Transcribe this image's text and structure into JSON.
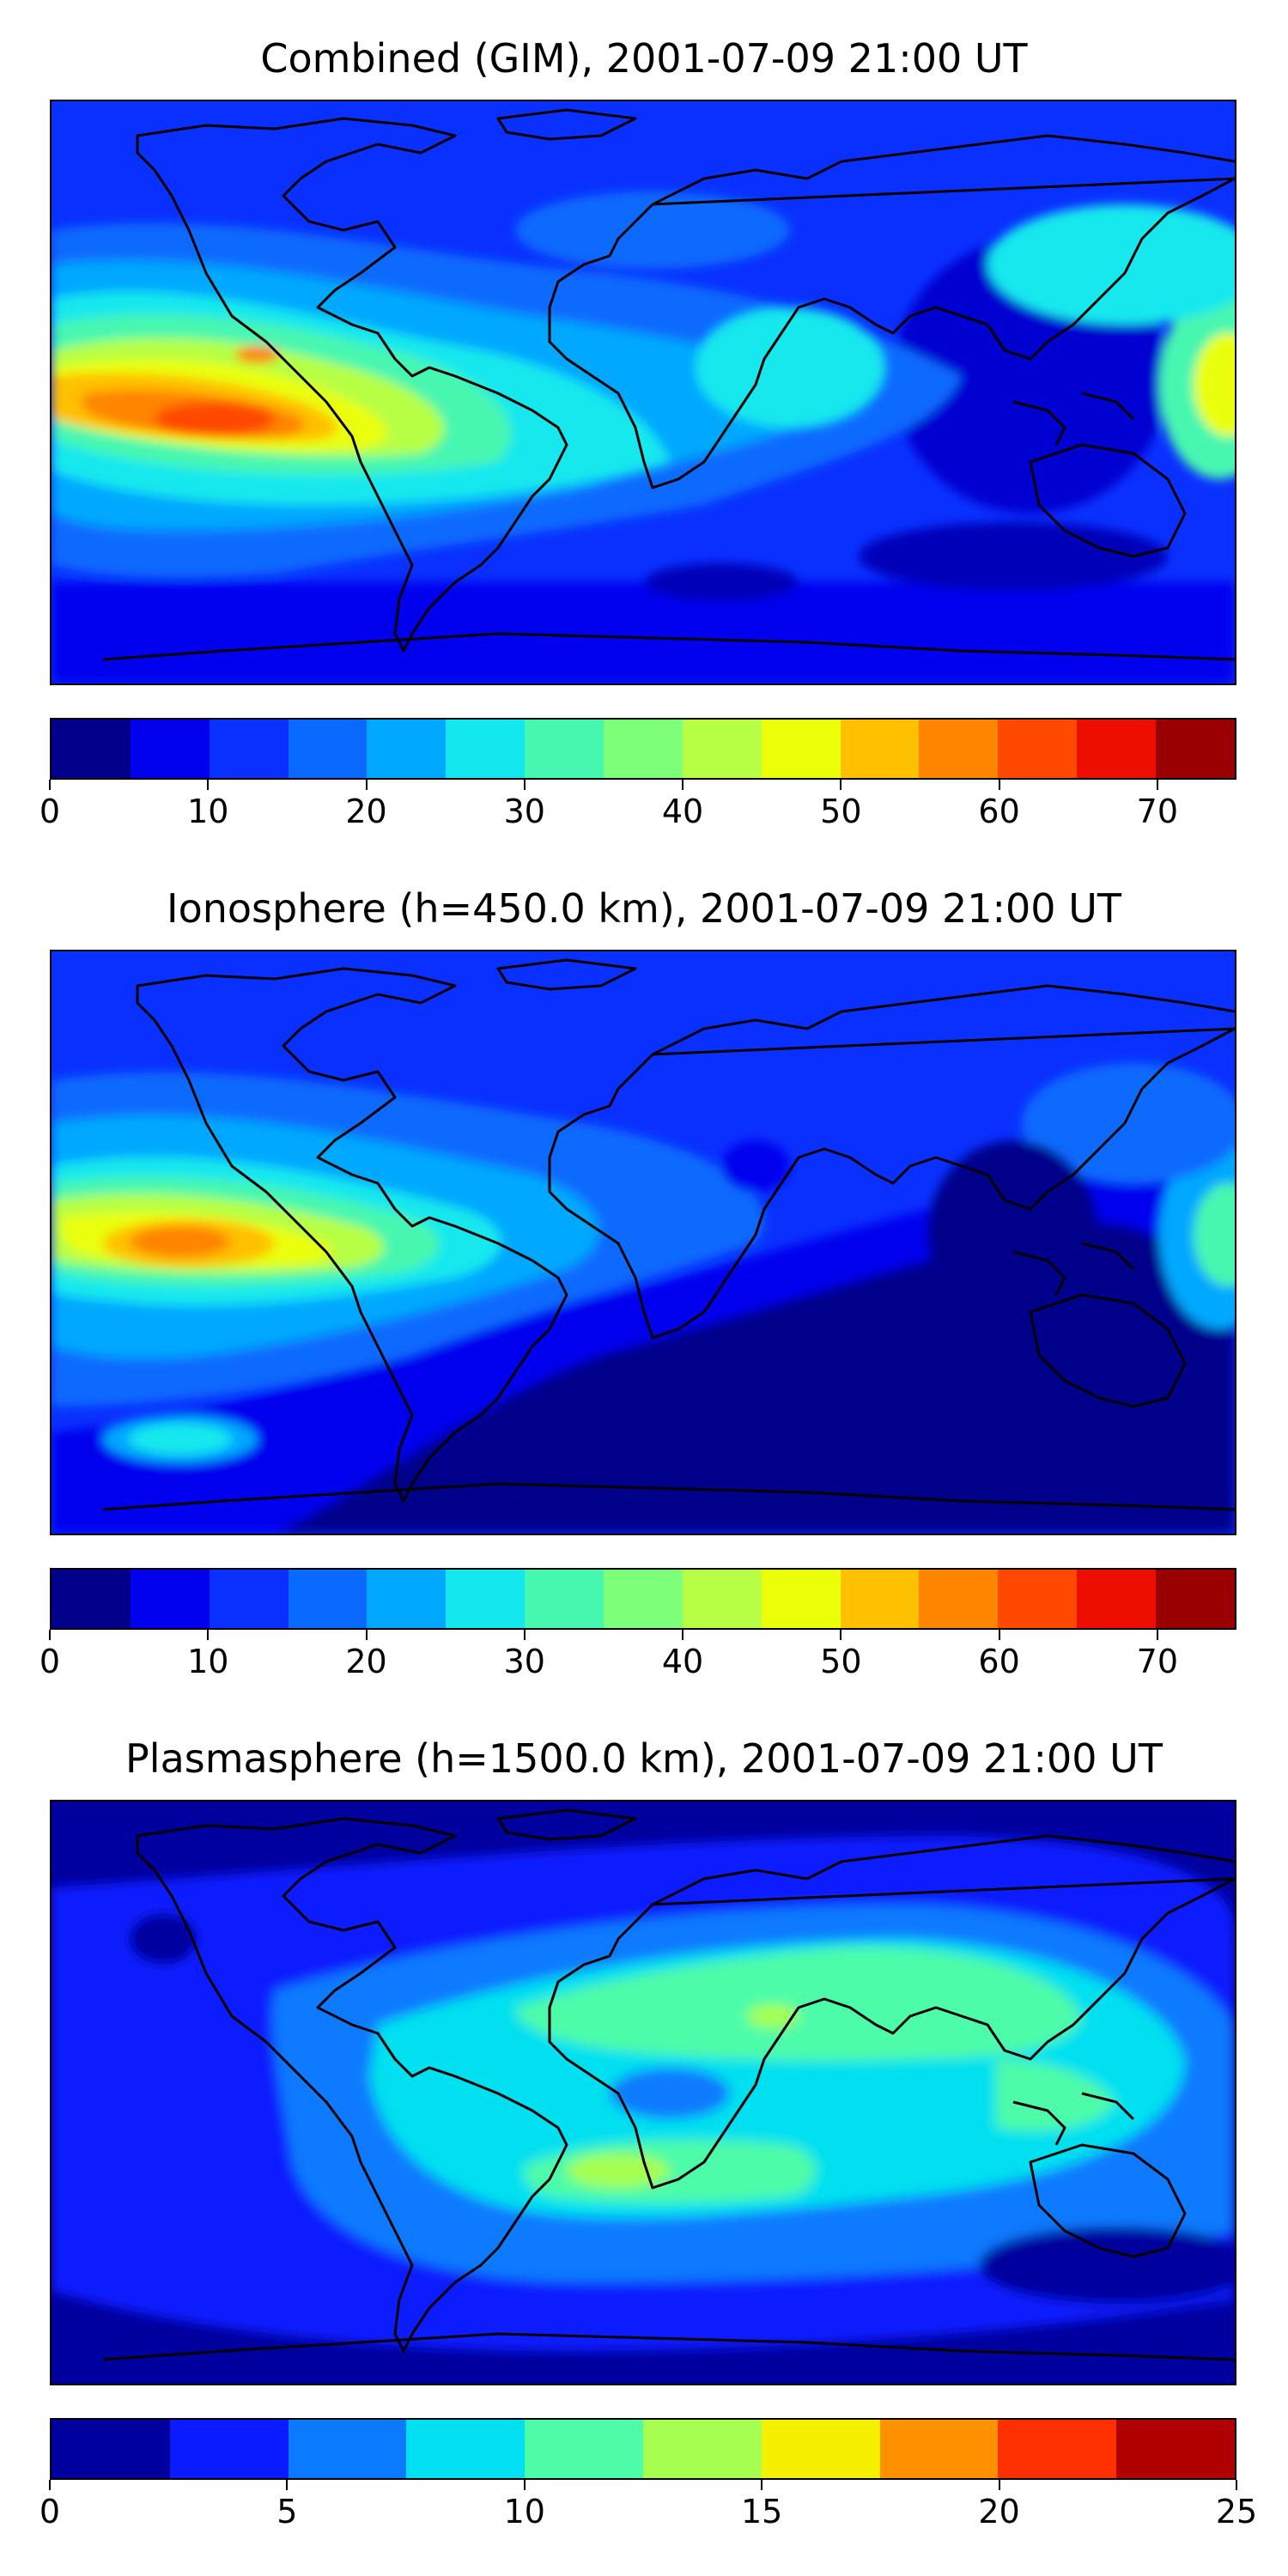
{
  "panels": [
    {
      "id": "combined",
      "title": "Combined (GIM), 2001-07-09 21:00 UT",
      "style": "combined",
      "colorbar": {
        "vmin": 0,
        "vmax": 75,
        "ticks": [
          "0",
          "10",
          "20",
          "30",
          "40",
          "50",
          "60",
          "70"
        ],
        "tick_values": [
          0,
          10,
          20,
          30,
          40,
          50,
          60,
          70
        ],
        "colors": [
          "#00008b",
          "#0000ee",
          "#0a30ff",
          "#0a6aff",
          "#00a8ff",
          "#12e8ee",
          "#46f7b0",
          "#7eff7a",
          "#b6ff44",
          "#eaff08",
          "#ffc000",
          "#ff8400",
          "#ff4800",
          "#ee0e00",
          "#9a0000"
        ]
      }
    },
    {
      "id": "ionosphere",
      "title": "Ionosphere  (h=450.0 km), 2001-07-09 21:00 UT",
      "style": "ionosphere",
      "colorbar": {
        "vmin": 0,
        "vmax": 75,
        "ticks": [
          "0",
          "10",
          "20",
          "30",
          "40",
          "50",
          "60",
          "70"
        ],
        "tick_values": [
          0,
          10,
          20,
          30,
          40,
          50,
          60,
          70
        ],
        "colors": [
          "#00008b",
          "#0000ee",
          "#0a30ff",
          "#0a6aff",
          "#00a8ff",
          "#12e8ee",
          "#46f7b0",
          "#7eff7a",
          "#b6ff44",
          "#eaff08",
          "#ffc000",
          "#ff8400",
          "#ff4800",
          "#ee0e00",
          "#9a0000"
        ]
      }
    },
    {
      "id": "plasmasphere",
      "title": "Plasmasphere (h=1500.0 km), 2001-07-09 21:00 UT",
      "style": "plasmasphere",
      "colorbar": {
        "vmin": 0,
        "vmax": 25,
        "ticks": [
          "0",
          "5",
          "10",
          "15",
          "20",
          "25"
        ],
        "tick_values": [
          0,
          5,
          10,
          15,
          20,
          25
        ],
        "colors": [
          "#00009e",
          "#0a1cff",
          "#0a7aff",
          "#00e0f0",
          "#4efca8",
          "#a6ff50",
          "#f4f000",
          "#ff9000",
          "#ff3000",
          "#b00000"
        ]
      }
    }
  ]
}
